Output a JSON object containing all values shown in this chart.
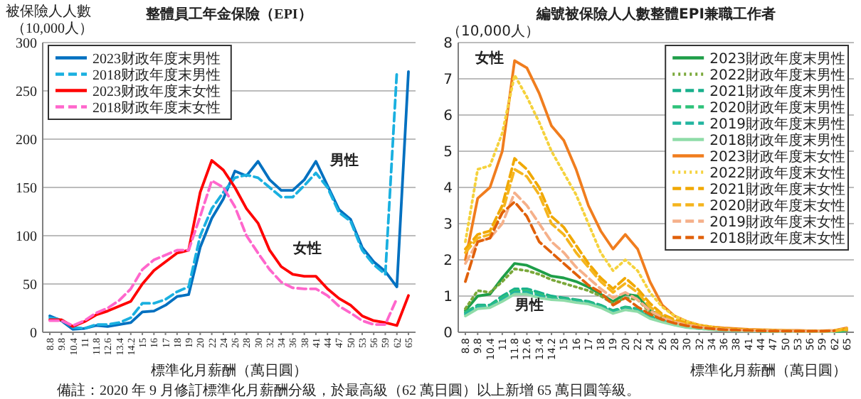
{
  "chart_data": [
    {
      "type": "line",
      "title": "整體員工年金保險（EPI）",
      "ylabel": "被保險人人數（10,000人）",
      "xlabel": "標準化月薪酬（萬日圓）",
      "categories": [
        "8.8",
        "9.8",
        "10.4",
        "11",
        "11.8",
        "12.6",
        "13.4",
        "14.2",
        "15",
        "16",
        "17",
        "18",
        "19",
        "20",
        "22",
        "24",
        "26",
        "28",
        "30",
        "32",
        "34",
        "36",
        "38",
        "41",
        "44",
        "47",
        "50",
        "53",
        "56",
        "59",
        "62",
        "65"
      ],
      "ylim": [
        0,
        300
      ],
      "yticks": [
        0,
        50,
        100,
        150,
        200,
        250,
        300
      ],
      "grid": "y",
      "legend": "top left",
      "series": [
        {
          "name": "2023财政年度末男性",
          "color": "#0070c0",
          "line_style": "solid",
          "values": [
            17,
            12,
            3,
            4,
            7,
            6,
            8,
            10,
            21,
            22,
            28,
            37,
            39,
            88,
            118,
            138,
            167,
            162,
            177,
            158,
            147,
            147,
            158,
            177,
            152,
            127,
            117,
            88,
            73,
            63,
            47,
            270
          ]
        },
        {
          "name": "2018财政年度末男性",
          "color": "#1ab0e0",
          "line_style": "dashed",
          "values": [
            15,
            13,
            5,
            4,
            8,
            8,
            10,
            15,
            30,
            30,
            34,
            42,
            47,
            100,
            128,
            145,
            160,
            163,
            160,
            150,
            140,
            140,
            152,
            165,
            150,
            124,
            115,
            85,
            70,
            60,
            270,
            null
          ]
        },
        {
          "name": "2023财政年度末女性",
          "color": "#ff0000",
          "line_style": "solid",
          "values": [
            13,
            13,
            6,
            11,
            18,
            22,
            27,
            32,
            50,
            64,
            73,
            82,
            85,
            145,
            178,
            168,
            150,
            128,
            113,
            85,
            68,
            60,
            58,
            58,
            45,
            35,
            28,
            17,
            12,
            10,
            7,
            38
          ]
        },
        {
          "name": "2018财政年度末女性",
          "color": "#ff66cc",
          "line_style": "dashed",
          "values": [
            12,
            12,
            7,
            12,
            20,
            25,
            33,
            45,
            65,
            75,
            80,
            85,
            85,
            120,
            157,
            150,
            130,
            100,
            82,
            65,
            52,
            46,
            45,
            45,
            38,
            27,
            20,
            12,
            8,
            8,
            35,
            null
          ]
        }
      ],
      "annotations": [
        "男性",
        "女性",
        "備註：2020 年 9 月修訂標準化月薪酬分級，於最高級（62 萬日圓）以上新增 65 萬日圓等級。"
      ]
    },
    {
      "type": "line",
      "title": "編號被保險人人數整體EPI兼職工作者",
      "ylabel": "（10,000人）",
      "xlabel": "標準化月薪酬（萬日圓）",
      "categories": [
        "8.8",
        "9.8",
        "10.4",
        "11",
        "11.8",
        "12.6",
        "13.4",
        "14.2",
        "15",
        "16",
        "17",
        "18",
        "19",
        "20",
        "22",
        "24",
        "26",
        "28",
        "30",
        "32",
        "34",
        "36",
        "38",
        "41",
        "44",
        "47",
        "50",
        "53",
        "56",
        "59",
        "62",
        "65"
      ],
      "ylim": [
        0,
        8
      ],
      "yticks": [
        0,
        1,
        2,
        3,
        4,
        5,
        6,
        7,
        8
      ],
      "grid": "y",
      "legend": "top right",
      "series": [
        {
          "name": "2023財政年度末男性",
          "color": "#1e9e48",
          "line_style": "solid",
          "values": [
            0.6,
            1.0,
            1.05,
            1.5,
            1.9,
            1.85,
            1.7,
            1.55,
            1.5,
            1.4,
            1.25,
            1.05,
            0.85,
            1.05,
            1.0,
            0.6,
            0.45,
            0.3,
            0.2,
            0.15,
            0.1,
            0.08,
            0.06,
            0.05,
            0.04,
            0.03,
            0.03,
            0.03,
            0.02,
            0.02,
            0.03,
            0.06
          ]
        },
        {
          "name": "2022財政年度末男性",
          "color": "#7aa83a",
          "line_style": "dotted",
          "values": [
            0.65,
            1.15,
            1.1,
            1.4,
            1.75,
            1.7,
            1.6,
            1.45,
            1.35,
            1.25,
            1.15,
            1.0,
            0.8,
            0.95,
            0.9,
            0.55,
            0.4,
            0.28,
            0.18,
            0.13,
            0.1,
            0.07,
            0.05,
            0.04,
            0.04,
            0.03,
            0.03,
            0.02,
            0.02,
            0.02,
            0.03,
            0.05
          ]
        },
        {
          "name": "2021財政年度末男性",
          "color": "#19b08c",
          "line_style": "dashed",
          "values": [
            0.55,
            0.75,
            0.75,
            1.0,
            1.2,
            1.2,
            1.1,
            1.0,
            0.95,
            0.9,
            0.85,
            0.75,
            0.6,
            0.7,
            0.65,
            0.45,
            0.33,
            0.24,
            0.16,
            0.12,
            0.09,
            0.06,
            0.05,
            0.04,
            0.03,
            0.03,
            0.02,
            0.02,
            0.02,
            0.02,
            0.02,
            0.04
          ]
        },
        {
          "name": "2020財政年度末男性",
          "color": "#2ec27a",
          "line_style": "dashed",
          "values": [
            0.55,
            0.72,
            0.72,
            0.95,
            1.15,
            1.15,
            1.05,
            0.95,
            0.92,
            0.88,
            0.82,
            0.72,
            0.57,
            0.68,
            0.62,
            0.42,
            0.31,
            0.22,
            0.15,
            0.11,
            0.08,
            0.06,
            0.05,
            0.04,
            0.03,
            0.03,
            0.02,
            0.02,
            0.02,
            0.02,
            0.02,
            0.04
          ]
        },
        {
          "name": "2019財政年度末男性",
          "color": "#22b5a0",
          "line_style": "dashed",
          "values": [
            0.5,
            0.7,
            0.7,
            0.9,
            1.1,
            1.1,
            1.0,
            0.92,
            0.9,
            0.85,
            0.8,
            0.7,
            0.55,
            0.65,
            0.6,
            0.4,
            0.3,
            0.21,
            0.14,
            0.1,
            0.08,
            0.06,
            0.04,
            0.04,
            0.03,
            0.02,
            0.02,
            0.02,
            0.02,
            0.02,
            0.02,
            null
          ]
        },
        {
          "name": "2018財政年度末男性",
          "color": "#8fdca8",
          "line_style": "solid",
          "values": [
            0.45,
            0.65,
            0.68,
            0.85,
            1.05,
            1.05,
            0.95,
            0.9,
            0.88,
            0.82,
            0.78,
            0.68,
            0.52,
            0.62,
            0.57,
            0.38,
            0.28,
            0.2,
            0.13,
            0.1,
            0.07,
            0.05,
            0.04,
            0.03,
            0.03,
            0.02,
            0.02,
            0.02,
            0.02,
            0.02,
            0.02,
            null
          ]
        },
        {
          "name": "2023財政年度末女性",
          "color": "#f07d1e",
          "line_style": "solid",
          "values": [
            2.0,
            3.7,
            4.0,
            5.0,
            7.5,
            7.3,
            6.6,
            5.7,
            5.3,
            4.5,
            3.5,
            2.8,
            2.3,
            2.7,
            2.3,
            1.4,
            0.75,
            0.45,
            0.3,
            0.2,
            0.15,
            0.12,
            0.1,
            0.08,
            0.07,
            0.06,
            0.05,
            0.05,
            0.04,
            0.04,
            0.05,
            0.12
          ]
        },
        {
          "name": "2022財政年度末女性",
          "color": "#f5d23c",
          "line_style": "dotted",
          "values": [
            2.5,
            4.5,
            4.6,
            5.5,
            7.1,
            6.5,
            5.8,
            5.0,
            4.4,
            3.8,
            3.0,
            2.2,
            1.7,
            2.0,
            1.7,
            1.1,
            0.7,
            0.45,
            0.3,
            0.2,
            0.15,
            0.1,
            0.08,
            0.07,
            0.06,
            0.05,
            0.05,
            0.04,
            0.04,
            0.04,
            0.05,
            0.1
          ]
        },
        {
          "name": "2021財政年度末女性",
          "color": "#f0a800",
          "line_style": "dashed",
          "values": [
            2.3,
            2.7,
            2.8,
            3.5,
            4.8,
            4.5,
            4.0,
            3.2,
            2.9,
            2.4,
            1.9,
            1.5,
            1.2,
            1.5,
            1.2,
            0.8,
            0.5,
            0.35,
            0.25,
            0.18,
            0.13,
            0.1,
            0.08,
            0.06,
            0.05,
            0.05,
            0.04,
            0.04,
            0.03,
            0.03,
            0.04,
            0.08
          ]
        },
        {
          "name": "2020財政年度末女性",
          "color": "#f5b51e",
          "line_style": "dashed",
          "values": [
            2.2,
            2.6,
            2.7,
            3.3,
            4.5,
            4.3,
            3.8,
            3.0,
            2.7,
            2.2,
            1.8,
            1.4,
            1.1,
            1.35,
            1.1,
            0.7,
            0.45,
            0.3,
            0.22,
            0.16,
            0.12,
            0.09,
            0.07,
            0.06,
            0.05,
            0.04,
            0.04,
            0.03,
            0.03,
            0.03,
            0.04,
            0.07
          ]
        },
        {
          "name": "2019財政年度末女性",
          "color": "#f5b08a",
          "line_style": "dashed",
          "values": [
            1.9,
            2.5,
            2.6,
            3.0,
            3.85,
            3.5,
            3.0,
            2.5,
            2.2,
            1.8,
            1.5,
            1.2,
            0.95,
            1.1,
            0.9,
            0.6,
            0.4,
            0.28,
            0.2,
            0.15,
            0.1,
            0.08,
            0.06,
            0.05,
            0.04,
            0.04,
            0.03,
            0.03,
            0.03,
            0.03,
            0.04,
            null
          ]
        },
        {
          "name": "2018財政年度末女性",
          "color": "#e0600a",
          "line_style": "dashed",
          "values": [
            1.4,
            2.5,
            2.6,
            3.3,
            3.6,
            3.2,
            2.5,
            2.2,
            1.9,
            1.6,
            1.3,
            1.1,
            0.75,
            0.95,
            0.7,
            0.5,
            0.35,
            0.25,
            0.18,
            0.13,
            0.1,
            0.07,
            0.06,
            0.05,
            0.04,
            0.03,
            0.03,
            0.03,
            0.03,
            0.03,
            0.04,
            null
          ]
        }
      ],
      "annotations": [
        "女性",
        "男性"
      ]
    }
  ]
}
